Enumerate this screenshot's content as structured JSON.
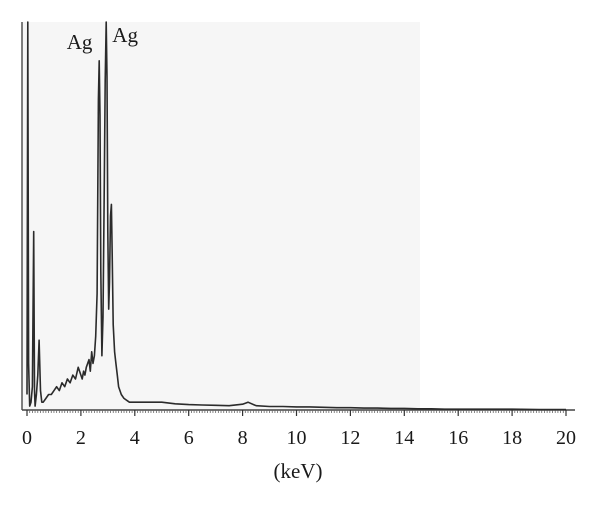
{
  "chart_data": {
    "type": "line",
    "title": "",
    "xlabel": "(keV)",
    "ylabel": "",
    "xlim": [
      0,
      20
    ],
    "ylim": [
      0,
      100
    ],
    "grid": false,
    "x_ticks": [
      0,
      2,
      4,
      6,
      8,
      10,
      12,
      14,
      16,
      18,
      20
    ],
    "x_tick_labels": [
      "0",
      "2",
      "4",
      "6",
      "8",
      "10",
      "12",
      "14",
      "16",
      "18",
      "20"
    ],
    "annotations": [
      {
        "text": "Ag",
        "x": 2.98,
        "y": 100
      },
      {
        "text": "Ag",
        "x": 2.65,
        "y": 91
      }
    ],
    "series": [
      {
        "x": [
          0.0,
          0.03,
          0.06,
          0.1,
          0.15,
          0.2,
          0.25,
          0.28,
          0.3,
          0.35,
          0.4,
          0.45,
          0.5,
          0.55,
          0.6,
          0.7,
          0.8,
          0.9,
          1.0,
          1.1,
          1.2,
          1.3,
          1.4,
          1.5,
          1.6,
          1.7,
          1.8,
          1.9,
          2.0,
          2.05,
          2.1,
          2.15,
          2.2,
          2.3,
          2.35,
          2.4,
          2.45,
          2.5,
          2.55,
          2.6,
          2.65,
          2.68,
          2.71,
          2.74,
          2.78,
          2.82,
          2.86,
          2.9,
          2.94,
          2.97,
          3.0,
          3.03,
          3.06,
          3.1,
          3.13,
          3.16,
          3.2,
          3.25,
          3.3,
          3.35,
          3.4,
          3.5,
          3.6,
          3.8,
          4.0,
          4.5,
          5.0,
          5.5,
          6.0,
          6.5,
          7.0,
          7.5,
          8.0,
          8.2,
          8.5,
          9.0,
          9.5,
          10.0,
          10.5,
          11.0,
          11.5,
          12.0,
          12.5,
          13.0,
          13.5,
          14.0,
          14.5,
          15.0,
          15.5,
          16.0,
          17.0,
          18.0,
          19.0,
          20.0
        ],
        "values": [
          4,
          100,
          12,
          1,
          2,
          6,
          46,
          5,
          1,
          4,
          9,
          18,
          5,
          2,
          2,
          3,
          4,
          4,
          5,
          6,
          5,
          7,
          6,
          8,
          7,
          9,
          8,
          11,
          9,
          8,
          10,
          9,
          11,
          13,
          10,
          15,
          12,
          14,
          19,
          30,
          80,
          90,
          76,
          36,
          14,
          24,
          53,
          85,
          100,
          86,
          46,
          26,
          33,
          50,
          53,
          40,
          22,
          15,
          12,
          9,
          6,
          4,
          3,
          2,
          2,
          2,
          2,
          1.6,
          1.4,
          1.3,
          1.2,
          1.1,
          1.5,
          2,
          1.1,
          0.9,
          0.9,
          0.8,
          0.8,
          0.7,
          0.6,
          0.6,
          0.5,
          0.5,
          0.4,
          0.4,
          0.3,
          0.3,
          0.2,
          0.2,
          0.2,
          0.2,
          0.1,
          0.1
        ]
      }
    ]
  }
}
